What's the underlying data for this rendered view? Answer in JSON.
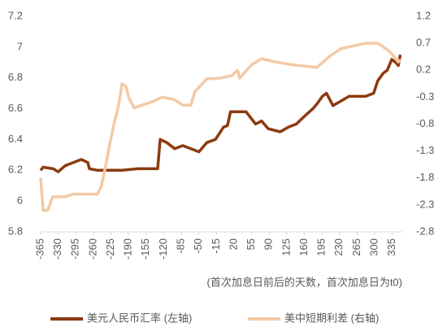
{
  "chart_data": {
    "type": "line",
    "x_label": "(首次加息日前后的天数，首次加息日为t0)",
    "xlim": [
      -365,
      355
    ],
    "xticks": [
      -365,
      -330,
      -295,
      -260,
      -225,
      -190,
      -155,
      -120,
      -85,
      -50,
      -15,
      20,
      55,
      90,
      125,
      160,
      195,
      230,
      265,
      300,
      335
    ],
    "ylim": [
      5.8,
      7.2
    ],
    "yticks": [
      5.8,
      6,
      6.2,
      6.4,
      6.6,
      6.8,
      7,
      7.2
    ],
    "y2lim": [
      -2.8,
      1.2
    ],
    "y2ticks": [
      -2.8,
      -2.3,
      -1.8,
      -1.3,
      -0.8,
      -0.3,
      0.2,
      0.7,
      1.2
    ],
    "legend": "bottom",
    "series": [
      {
        "name": "美元人民币汇率 (左轴)",
        "color": "#8b3a0f",
        "axis": "y",
        "x": [
          -365,
          -360,
          -340,
          -330,
          -316,
          -300,
          -292,
          -284,
          -271,
          -268,
          -252,
          -203,
          -171,
          -132,
          -127,
          -114,
          -98,
          -82,
          -66,
          -50,
          -34,
          -17,
          -1,
          7,
          13,
          44,
          63,
          75,
          88,
          112,
          128,
          144,
          160,
          177,
          185,
          196,
          204,
          217,
          233,
          249,
          282,
          298,
          306,
          317,
          325,
          334,
          342,
          347,
          351
        ],
        "values": [
          6.2,
          6.22,
          6.21,
          6.19,
          6.23,
          6.25,
          6.26,
          6.27,
          6.25,
          6.21,
          6.2,
          6.2,
          6.21,
          6.21,
          6.4,
          6.38,
          6.34,
          6.36,
          6.34,
          6.32,
          6.38,
          6.4,
          6.48,
          6.49,
          6.58,
          6.58,
          6.5,
          6.52,
          6.47,
          6.45,
          6.48,
          6.5,
          6.55,
          6.6,
          6.63,
          6.68,
          6.7,
          6.62,
          6.65,
          6.68,
          6.68,
          6.7,
          6.78,
          6.83,
          6.85,
          6.92,
          6.9,
          6.88,
          6.95
        ]
      },
      {
        "name": "美中短期利差 (右轴)",
        "color": "#f3c9a4",
        "axis": "y2",
        "x": [
          -365,
          -360,
          -351,
          -341,
          -316,
          -300,
          -252,
          -244,
          -236,
          -228,
          -219,
          -211,
          -207,
          -203,
          -195,
          -190,
          -179,
          -163,
          -147,
          -122,
          -98,
          -82,
          -66,
          -58,
          -34,
          -9,
          15,
          27,
          31,
          55,
          75,
          104,
          136,
          185,
          209,
          233,
          282,
          306,
          330,
          347,
          351
        ],
        "values": [
          -1.8,
          -2.4,
          -2.4,
          -2.15,
          -2.15,
          -2.1,
          -2.1,
          -1.95,
          -1.6,
          -1.2,
          -0.8,
          -0.5,
          -0.3,
          -0.05,
          -0.1,
          -0.3,
          -0.5,
          -0.45,
          -0.4,
          -0.3,
          -0.35,
          -0.45,
          -0.45,
          -0.2,
          0.04,
          0.05,
          0.1,
          0.2,
          0.05,
          0.3,
          0.41,
          0.35,
          0.3,
          0.25,
          0.45,
          0.6,
          0.7,
          0.7,
          0.55,
          0.35,
          0.4
        ]
      }
    ]
  }
}
